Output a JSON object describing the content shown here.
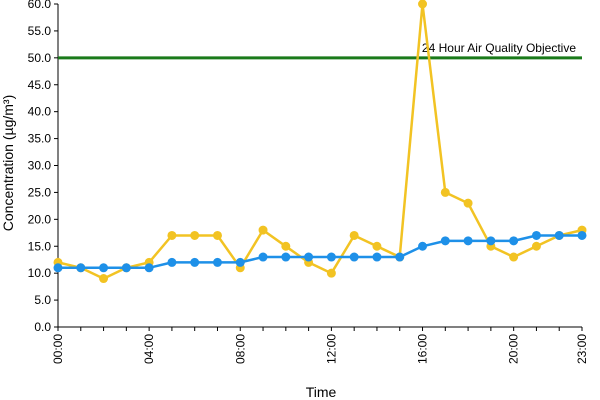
{
  "chart_data": {
    "type": "line",
    "xlabel": "Time",
    "ylabel": "Concentration (µg/m³)",
    "ylim": [
      0,
      60
    ],
    "y_ticks": [
      "0.0",
      "5.0",
      "10.0",
      "15.0",
      "20.0",
      "25.0",
      "30.0",
      "35.0",
      "40.0",
      "45.0",
      "50.0",
      "55.0",
      "60.0"
    ],
    "x_ticks": [
      "00:00",
      "04:00",
      "08:00",
      "12:00",
      "16:00",
      "20:00",
      "23:00"
    ],
    "x": [
      "00:00",
      "01:00",
      "02:00",
      "03:00",
      "04:00",
      "05:00",
      "06:00",
      "07:00",
      "08:00",
      "09:00",
      "10:00",
      "11:00",
      "12:00",
      "13:00",
      "14:00",
      "15:00",
      "16:00",
      "17:00",
      "18:00",
      "19:00",
      "20:00",
      "21:00",
      "22:00",
      "23:00"
    ],
    "series": [
      {
        "color": "#F2C323",
        "values": [
          12,
          11,
          9,
          11,
          12,
          17,
          17,
          17,
          11,
          18,
          15,
          12,
          10,
          17,
          15,
          13,
          60,
          25,
          23,
          15,
          13,
          15,
          17,
          18
        ]
      },
      {
        "color": "#1E90E8",
        "values": [
          11,
          11,
          11,
          11,
          11,
          12,
          12,
          12,
          12,
          13,
          13,
          13,
          13,
          13,
          13,
          13,
          15,
          16,
          16,
          16,
          16,
          17,
          17,
          17
        ]
      }
    ],
    "reference_line": {
      "value": 50,
      "label": "24 Hour Air Quality Objective",
      "color": "#1A7A1A"
    },
    "grid": false,
    "legend": false
  }
}
